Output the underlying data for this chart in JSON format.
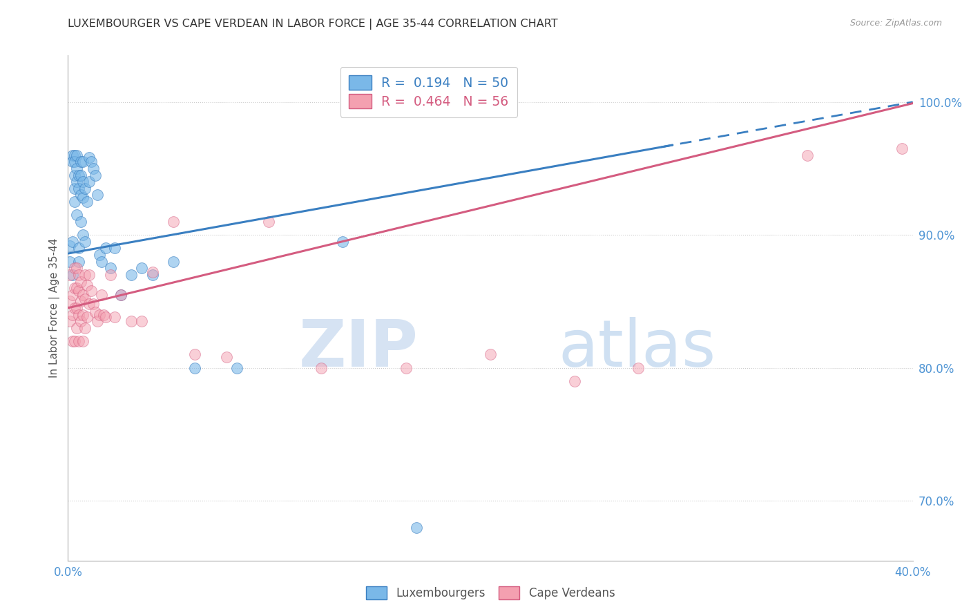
{
  "title": "LUXEMBOURGER VS CAPE VERDEAN IN LABOR FORCE | AGE 35-44 CORRELATION CHART",
  "source_text": "Source: ZipAtlas.com",
  "ylabel": "In Labor Force | Age 35-44",
  "xlim": [
    0.0,
    0.4
  ],
  "ylim": [
    0.655,
    1.035
  ],
  "xticks": [
    0.0,
    0.05,
    0.1,
    0.15,
    0.2,
    0.25,
    0.3,
    0.35,
    0.4
  ],
  "xticklabels": [
    "0.0%",
    "",
    "",
    "",
    "",
    "",
    "",
    "",
    "40.0%"
  ],
  "yticks_right": [
    0.7,
    0.8,
    0.9,
    1.0
  ],
  "ytick_labels_right": [
    "70.0%",
    "80.0%",
    "90.0%",
    "100.0%"
  ],
  "blue_R": 0.194,
  "blue_N": 50,
  "pink_R": 0.464,
  "pink_N": 56,
  "blue_color": "#7ab8e8",
  "pink_color": "#f4a0b0",
  "blue_line_color": "#3a7fc1",
  "pink_line_color": "#d45c80",
  "legend_label_blue": "Luxembourgers",
  "legend_label_pink": "Cape Verdeans",
  "blue_x": [
    0.001,
    0.001,
    0.002,
    0.002,
    0.002,
    0.002,
    0.003,
    0.003,
    0.003,
    0.003,
    0.003,
    0.004,
    0.004,
    0.004,
    0.004,
    0.005,
    0.005,
    0.005,
    0.005,
    0.006,
    0.006,
    0.006,
    0.006,
    0.007,
    0.007,
    0.007,
    0.007,
    0.008,
    0.008,
    0.009,
    0.01,
    0.01,
    0.011,
    0.012,
    0.013,
    0.014,
    0.015,
    0.016,
    0.018,
    0.02,
    0.022,
    0.025,
    0.03,
    0.035,
    0.04,
    0.05,
    0.06,
    0.08,
    0.13,
    0.165
  ],
  "blue_y": [
    0.88,
    0.892,
    0.96,
    0.955,
    0.87,
    0.895,
    0.96,
    0.955,
    0.945,
    0.935,
    0.925,
    0.96,
    0.95,
    0.94,
    0.915,
    0.945,
    0.935,
    0.88,
    0.89,
    0.955,
    0.945,
    0.93,
    0.91,
    0.955,
    0.94,
    0.928,
    0.9,
    0.935,
    0.895,
    0.925,
    0.958,
    0.94,
    0.955,
    0.95,
    0.945,
    0.93,
    0.885,
    0.88,
    0.89,
    0.875,
    0.89,
    0.855,
    0.87,
    0.875,
    0.87,
    0.88,
    0.8,
    0.8,
    0.895,
    0.68
  ],
  "pink_x": [
    0.001,
    0.001,
    0.001,
    0.002,
    0.002,
    0.002,
    0.003,
    0.003,
    0.003,
    0.003,
    0.004,
    0.004,
    0.004,
    0.004,
    0.005,
    0.005,
    0.005,
    0.005,
    0.006,
    0.006,
    0.006,
    0.007,
    0.007,
    0.007,
    0.008,
    0.008,
    0.008,
    0.009,
    0.009,
    0.01,
    0.01,
    0.011,
    0.012,
    0.013,
    0.014,
    0.015,
    0.016,
    0.017,
    0.018,
    0.02,
    0.022,
    0.025,
    0.03,
    0.035,
    0.04,
    0.05,
    0.06,
    0.075,
    0.095,
    0.12,
    0.16,
    0.2,
    0.24,
    0.27,
    0.35,
    0.395
  ],
  "pink_y": [
    0.87,
    0.85,
    0.835,
    0.855,
    0.84,
    0.82,
    0.875,
    0.86,
    0.845,
    0.82,
    0.875,
    0.86,
    0.845,
    0.83,
    0.87,
    0.858,
    0.84,
    0.82,
    0.865,
    0.85,
    0.835,
    0.855,
    0.84,
    0.82,
    0.87,
    0.852,
    0.83,
    0.862,
    0.838,
    0.87,
    0.848,
    0.858,
    0.848,
    0.842,
    0.835,
    0.84,
    0.855,
    0.84,
    0.838,
    0.87,
    0.838,
    0.855,
    0.835,
    0.835,
    0.872,
    0.91,
    0.81,
    0.808,
    0.91,
    0.8,
    0.8,
    0.81,
    0.79,
    0.8,
    0.96,
    0.965
  ],
  "watermark_zip": "ZIP",
  "watermark_atlas": "atlas",
  "background_color": "#ffffff",
  "grid_color": "#d8d8d8",
  "dotted_grid_color": "#cccccc"
}
